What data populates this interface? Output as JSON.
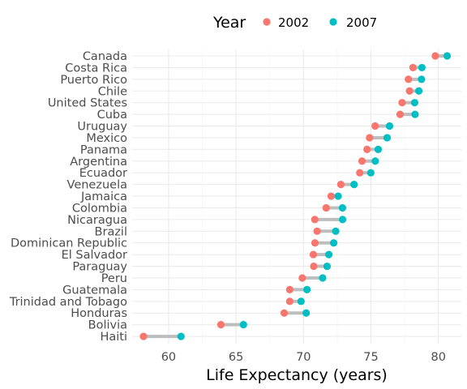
{
  "chart_data": {
    "type": "scatter",
    "subtype": "dumbbell",
    "xlabel": "Life Expectancy (years)",
    "ylabel": "",
    "xlim": [
      57.3,
      81.7
    ],
    "xticks": [
      60,
      65,
      70,
      75,
      80
    ],
    "grid": true,
    "legend": {
      "title": "Year",
      "position": "top",
      "entries": [
        {
          "label": "2002",
          "color": "#f8766d"
        },
        {
          "label": "2007",
          "color": "#00bfc4"
        }
      ]
    },
    "segment_color": "#bdbdbd",
    "categories": [
      "Canada",
      "Costa Rica",
      "Puerto Rico",
      "Chile",
      "United States",
      "Cuba",
      "Uruguay",
      "Mexico",
      "Panama",
      "Argentina",
      "Ecuador",
      "Venezuela",
      "Jamaica",
      "Colombia",
      "Nicaragua",
      "Brazil",
      "Dominican Republic",
      "El Salvador",
      "Paraguay",
      "Peru",
      "Guatemala",
      "Trinidad and Tobago",
      "Honduras",
      "Bolivia",
      "Haiti"
    ],
    "series": [
      {
        "name": "2002",
        "color": "#f8766d",
        "values": [
          79.77,
          78.12,
          77.78,
          77.86,
          77.31,
          77.16,
          75.31,
          74.9,
          74.71,
          74.34,
          74.17,
          72.77,
          72.05,
          71.68,
          70.84,
          71.01,
          70.85,
          70.73,
          70.76,
          69.91,
          68.98,
          68.98,
          68.57,
          63.88,
          58.14
        ]
      },
      {
        "name": "2007",
        "color": "#00bfc4",
        "values": [
          80.65,
          78.78,
          78.75,
          78.55,
          78.24,
          78.27,
          76.38,
          76.2,
          75.54,
          75.32,
          74.99,
          73.75,
          72.57,
          72.89,
          72.9,
          72.39,
          72.24,
          71.88,
          71.75,
          71.42,
          70.26,
          69.82,
          70.2,
          65.55,
          60.92
        ]
      }
    ]
  }
}
